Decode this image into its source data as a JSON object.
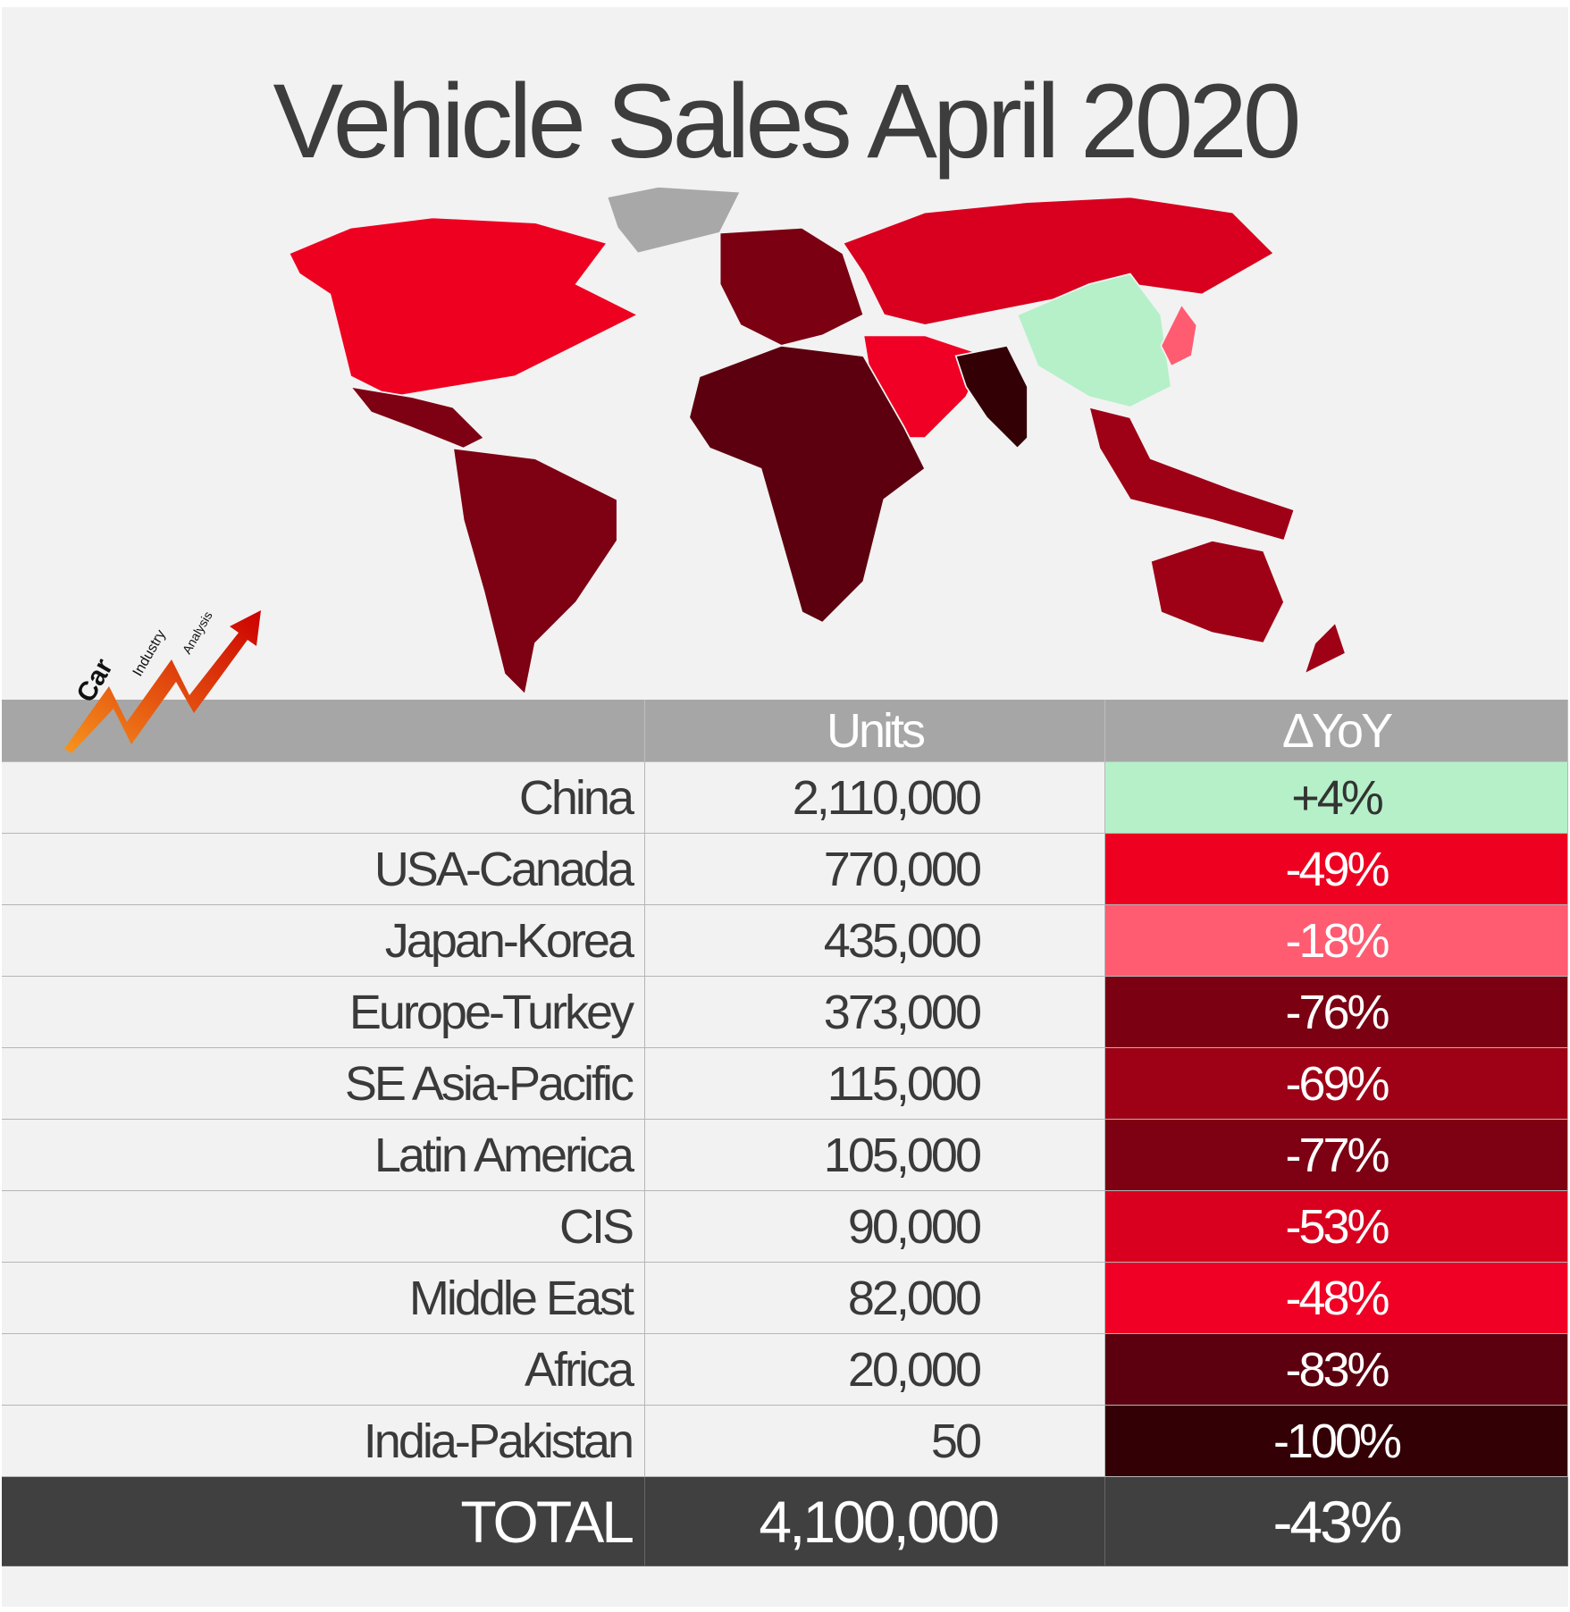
{
  "title": "Vehicle Sales April 2020",
  "logo": {
    "words": [
      "Car",
      "Industry",
      "Analysis"
    ]
  },
  "table": {
    "header": [
      "Units",
      "ΔYoY"
    ],
    "rows": [
      {
        "region": "China",
        "units": "2,110,000",
        "change": "+4%",
        "color": "#b5f0c8",
        "text_color": "#333333"
      },
      {
        "region": "USA-Canada",
        "units": "770,000",
        "change": "-49%",
        "color": "#ee0021",
        "text_color": "#ffffff"
      },
      {
        "region": "Japan-Korea",
        "units": "435,000",
        "change": "-18%",
        "color": "#ff5c72",
        "text_color": "#ffffff"
      },
      {
        "region": "Europe-Turkey",
        "units": "373,000",
        "change": "-76%",
        "color": "#7a0012",
        "text_color": "#ffffff"
      },
      {
        "region": "SE Asia-Pacific",
        "units": "115,000",
        "change": "-69%",
        "color": "#9e0016",
        "text_color": "#ffffff"
      },
      {
        "region": "Latin America",
        "units": "105,000",
        "change": "-77%",
        "color": "#7d0013",
        "text_color": "#ffffff"
      },
      {
        "region": "CIS",
        "units": "90,000",
        "change": "-53%",
        "color": "#d8001e",
        "text_color": "#ffffff"
      },
      {
        "region": "Middle East",
        "units": "82,000",
        "change": "-48%",
        "color": "#f00024",
        "text_color": "#ffffff"
      },
      {
        "region": "Africa",
        "units": "20,000",
        "change": "-83%",
        "color": "#5c000f",
        "text_color": "#ffffff"
      },
      {
        "region": "India-Pakistan",
        "units": "50",
        "change": "-100%",
        "color": "#330006",
        "text_color": "#ffffff"
      }
    ],
    "total": {
      "label": "TOTAL",
      "units": "4,100,000",
      "change": "-43%"
    }
  }
}
